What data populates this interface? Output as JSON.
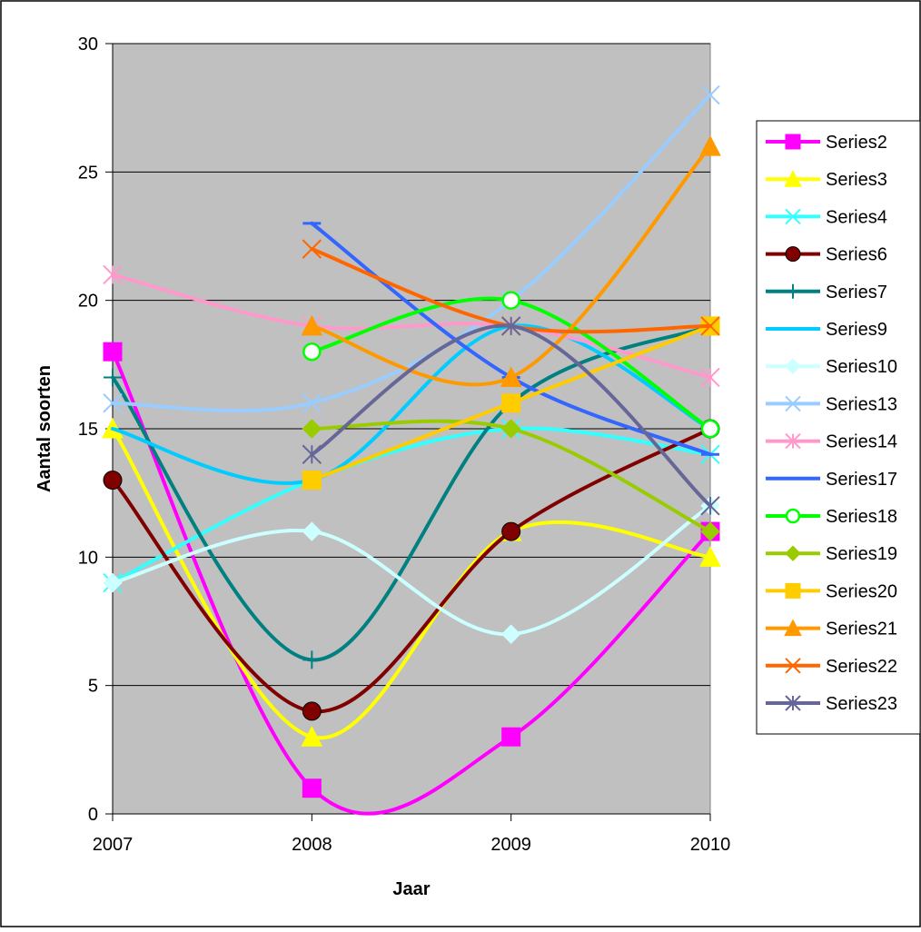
{
  "chart_data": {
    "type": "line",
    "xlabel": "Jaar",
    "ylabel": "Aantal soorten",
    "x": [
      "2007",
      "2008",
      "2009",
      "2010"
    ],
    "ylim": [
      0,
      30
    ],
    "yticks": [
      0,
      5,
      10,
      15,
      20,
      25,
      30
    ],
    "grid": true,
    "smooth": true,
    "plot_background": "#c0c0c0",
    "legend_position": "right",
    "series": [
      {
        "name": "Series2",
        "color": "#ff00ff",
        "marker": "square",
        "values": [
          18,
          1,
          3,
          11
        ]
      },
      {
        "name": "Series3",
        "color": "#ffff00",
        "marker": "triangle",
        "values": [
          15,
          3,
          11,
          10
        ]
      },
      {
        "name": "Series4",
        "color": "#33ffff",
        "marker": "x",
        "values": [
          9,
          13,
          15,
          14
        ]
      },
      {
        "name": "Series6",
        "color": "#800000",
        "marker": "circle",
        "values": [
          13,
          4,
          11,
          15
        ]
      },
      {
        "name": "Series7",
        "color": "#008080",
        "marker": "plus",
        "values": [
          17,
          6,
          16,
          19
        ]
      },
      {
        "name": "Series9",
        "color": "#00ccff",
        "marker": "none",
        "values": [
          15,
          13,
          19,
          15
        ]
      },
      {
        "name": "Series10",
        "color": "#ccffff",
        "marker": "diamond",
        "values": [
          9,
          11,
          7,
          12
        ]
      },
      {
        "name": "Series13",
        "color": "#99ccff",
        "marker": "x",
        "values": [
          16,
          16,
          20,
          28
        ]
      },
      {
        "name": "Series14",
        "color": "#ff99cc",
        "marker": "asterisk",
        "values": [
          21,
          19,
          19,
          17
        ]
      },
      {
        "name": "Series17",
        "color": "#3366ff",
        "marker": "dash",
        "values": [
          null,
          23,
          17,
          14
        ]
      },
      {
        "name": "Series18",
        "color": "#00ff00",
        "marker": "circle-open",
        "values": [
          null,
          18,
          20,
          15
        ]
      },
      {
        "name": "Series19",
        "color": "#99cc00",
        "marker": "diamond",
        "values": [
          null,
          15,
          15,
          11
        ]
      },
      {
        "name": "Series20",
        "color": "#ffcc00",
        "marker": "square",
        "values": [
          null,
          13,
          16,
          19
        ]
      },
      {
        "name": "Series21",
        "color": "#ff9900",
        "marker": "triangle",
        "values": [
          null,
          19,
          17,
          26
        ]
      },
      {
        "name": "Series22",
        "color": "#ff6600",
        "marker": "x",
        "values": [
          null,
          22,
          19,
          19
        ]
      },
      {
        "name": "Series23",
        "color": "#666699",
        "marker": "asterisk",
        "values": [
          null,
          14,
          19,
          12
        ]
      }
    ]
  }
}
